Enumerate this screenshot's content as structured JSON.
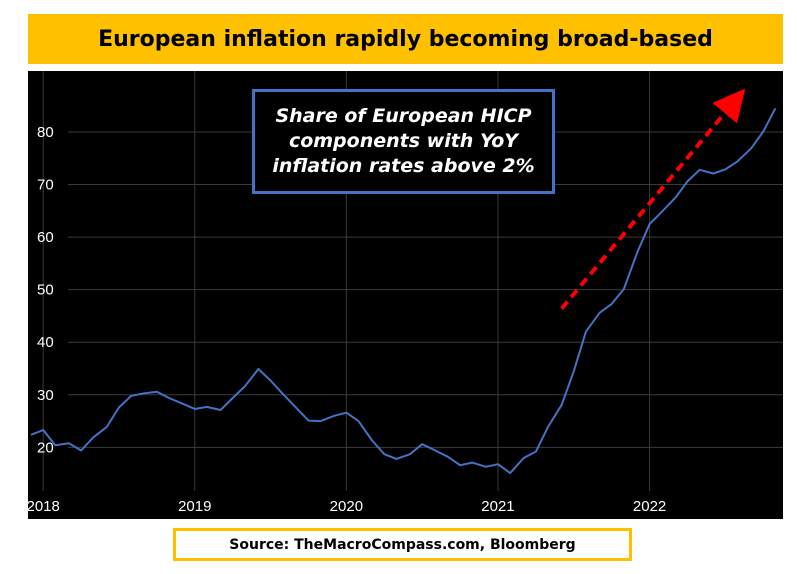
{
  "title": "European inflation rapidly becoming broad-based",
  "source": "Source: TheMacroCompass.com, Bloomberg",
  "annotation": {
    "lines": [
      "Share of European HICP",
      "components with YoY",
      "inflation rates above 2%"
    ]
  },
  "colors": {
    "title_bg": "#ffc000",
    "line": "#4472c4",
    "arrow": "#ff0000",
    "chart_bg": "#000000",
    "grid": "#3a3a3a",
    "tick_text": "#ffffff"
  },
  "chart_data": {
    "type": "line",
    "title": "European inflation rapidly becoming broad-based",
    "xlabel": "",
    "ylabel": "",
    "xlim": [
      2017.9,
      2022.88
    ],
    "ylim": [
      11.7,
      91.6
    ],
    "x_ticks": [
      2018,
      2019,
      2020,
      2021,
      2022
    ],
    "y_ticks": [
      20,
      30,
      40,
      50,
      60,
      70,
      80
    ],
    "grid": true,
    "series": [
      {
        "x": [
          2017.92,
          2018.0,
          2018.08,
          2018.17,
          2018.25,
          2018.33,
          2018.42,
          2018.5,
          2018.58,
          2018.67,
          2018.75,
          2018.83,
          2018.92,
          2019.0,
          2019.08,
          2019.17,
          2019.25,
          2019.33,
          2019.42,
          2019.5,
          2019.58,
          2019.67,
          2019.75,
          2019.83,
          2019.92,
          2020.0,
          2020.08,
          2020.17,
          2020.25,
          2020.33,
          2020.42,
          2020.5,
          2020.58,
          2020.67,
          2020.75,
          2020.83,
          2020.92,
          2021.0,
          2021.08,
          2021.17,
          2021.25,
          2021.33,
          2021.42,
          2021.5,
          2021.58,
          2021.67,
          2021.75,
          2021.83,
          2021.92,
          2022.0,
          2022.08,
          2022.17,
          2022.25,
          2022.33,
          2022.42,
          2022.5,
          2022.58,
          2022.67,
          2022.75,
          2022.83
        ],
        "values": [
          22.4,
          23.3,
          20.4,
          20.8,
          19.4,
          21.9,
          23.9,
          27.6,
          29.8,
          30.3,
          30.6,
          29.4,
          28.3,
          27.3,
          27.7,
          27.1,
          29.4,
          31.6,
          34.9,
          32.7,
          30.2,
          27.5,
          25.1,
          25.0,
          26.0,
          26.6,
          25.0,
          21.3,
          18.7,
          17.8,
          18.7,
          20.6,
          19.5,
          18.2,
          16.6,
          17.1,
          16.3,
          16.8,
          15.1,
          18.0,
          19.2,
          23.9,
          28.1,
          34.5,
          42.0,
          45.6,
          47.3,
          50.1,
          57.2,
          62.5,
          64.8,
          67.5,
          70.6,
          72.8,
          72.1,
          72.9,
          74.4,
          76.9,
          80.1,
          84.5
        ]
      }
    ],
    "annotation_arrow": {
      "from": [
        2021.42,
        46.4
      ],
      "to": [
        2022.58,
        86.5
      ]
    }
  }
}
